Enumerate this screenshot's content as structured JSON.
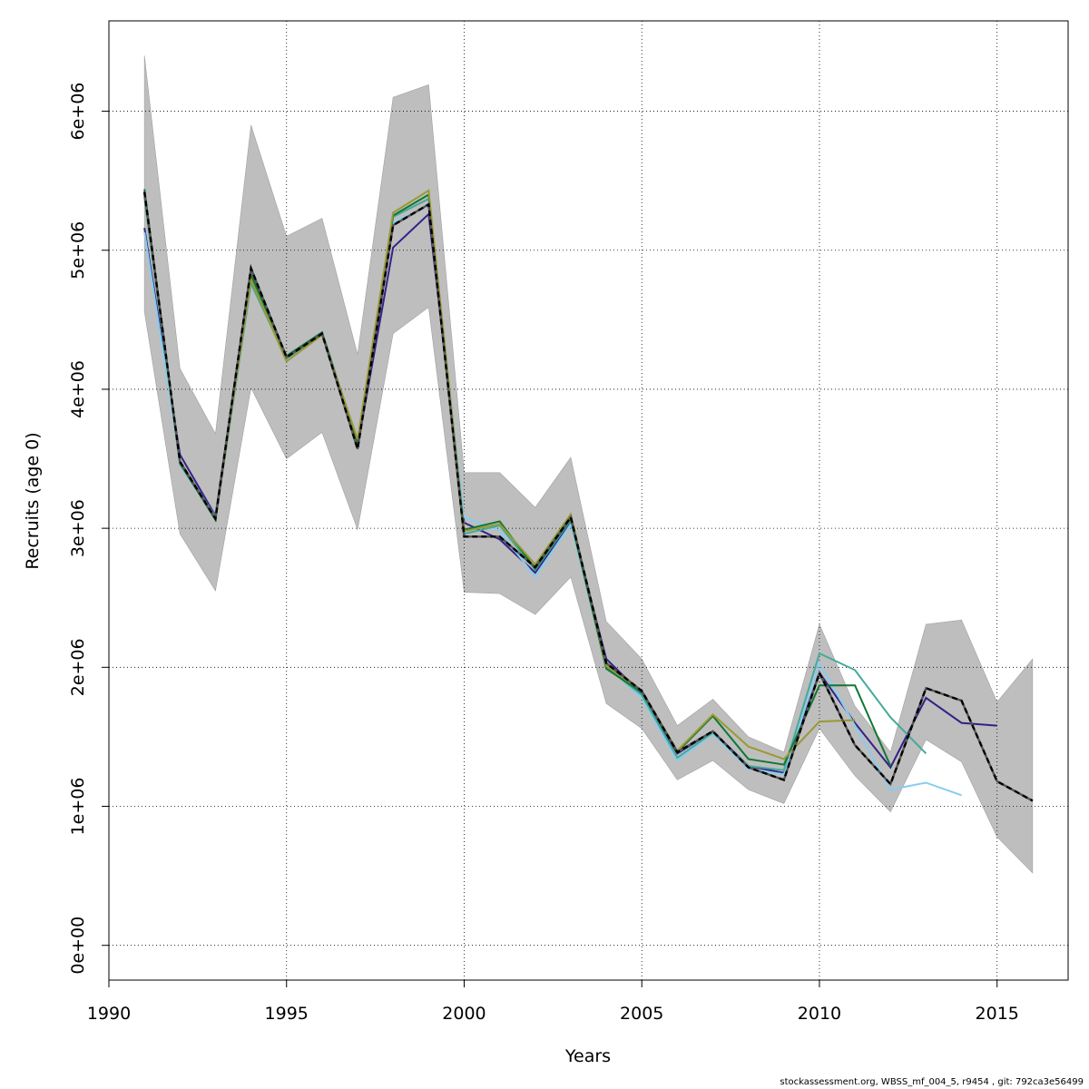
{
  "chart_data": {
    "type": "line",
    "xlabel": "Years",
    "ylabel": "Recruits (age 0)",
    "xlim": [
      1990,
      2017
    ],
    "ylim": [
      -250000,
      6650000
    ],
    "x_ticks": [
      1990,
      1995,
      2000,
      2005,
      2010,
      2015
    ],
    "x_tick_labels": [
      "1990",
      "1995",
      "2000",
      "2005",
      "2010",
      "2015"
    ],
    "y_ticks": [
      0,
      1000000,
      2000000,
      3000000,
      4000000,
      5000000,
      6000000
    ],
    "y_tick_labels": [
      "0e+00",
      "1e+06",
      "2e+06",
      "3e+06",
      "4e+06",
      "5e+06",
      "6e+06"
    ],
    "grid": true,
    "confidence_band": {
      "color": "#bebebe",
      "x": [
        1991,
        1992,
        1993,
        1994,
        1995,
        1996,
        1997,
        1998,
        1999,
        2000,
        2001,
        2002,
        2003,
        2004,
        2005,
        2006,
        2007,
        2008,
        2009,
        2010,
        2011,
        2012,
        2013,
        2014,
        2015,
        2016
      ],
      "upper": [
        6400000,
        4150000,
        3680000,
        5900000,
        5100000,
        5230000,
        4250000,
        6100000,
        6190000,
        3400000,
        3400000,
        3150000,
        3510000,
        2330000,
        2060000,
        1580000,
        1770000,
        1500000,
        1390000,
        2310000,
        1720000,
        1390000,
        2310000,
        2340000,
        1750000,
        2060000
      ],
      "lower": [
        4560000,
        2960000,
        2550000,
        4010000,
        3500000,
        3690000,
        2990000,
        4400000,
        4590000,
        2540000,
        2530000,
        2380000,
        2650000,
        1740000,
        1560000,
        1190000,
        1330000,
        1120000,
        1020000,
        1560000,
        1220000,
        960000,
        1480000,
        1320000,
        780000,
        520000
      ]
    },
    "series": [
      {
        "color": "#332288",
        "x": [
          1991,
          1992,
          1993,
          1994,
          1995,
          1996,
          1997,
          1998,
          1999,
          2000,
          2001,
          2002,
          2003,
          2004,
          2005,
          2006,
          2007,
          2008,
          2009,
          2010,
          2011,
          2012,
          2013,
          2014,
          2015
        ],
        "values": [
          5160000,
          3530000,
          3090000,
          4860000,
          4230000,
          4400000,
          3590000,
          5020000,
          5260000,
          3040000,
          2920000,
          2680000,
          3050000,
          2060000,
          1810000,
          1380000,
          1540000,
          1290000,
          1240000,
          1960000,
          1600000,
          1280000,
          1780000,
          1600000,
          1580000
        ]
      },
      {
        "color": "#88ccee",
        "x": [
          1991,
          1992,
          1993,
          1994,
          1995,
          1996,
          1997,
          1998,
          1999,
          2000,
          2001,
          2002,
          2003,
          2004,
          2005,
          2006,
          2007,
          2008,
          2009,
          2010,
          2011,
          2012,
          2013,
          2014
        ],
        "values": [
          5130000,
          3480000,
          3080000,
          4770000,
          4210000,
          4390000,
          3580000,
          5200000,
          5320000,
          3080000,
          2980000,
          2650000,
          3030000,
          2010000,
          1780000,
          1330000,
          1520000,
          1270000,
          1230000,
          2030000,
          1580000,
          1120000,
          1170000,
          1080000
        ]
      },
      {
        "color": "#44aa99",
        "x": [
          1991,
          1992,
          1993,
          1994,
          1995,
          1996,
          1997,
          1998,
          1999,
          2000,
          2001,
          2002,
          2003,
          2004,
          2005,
          2006,
          2007,
          2008,
          2009,
          2010,
          2011,
          2012,
          2013
        ],
        "values": [
          5380000,
          3460000,
          3070000,
          4760000,
          4220000,
          4400000,
          3610000,
          5240000,
          5370000,
          2960000,
          3020000,
          2700000,
          3060000,
          2000000,
          1800000,
          1350000,
          1530000,
          1290000,
          1260000,
          2100000,
          1980000,
          1640000,
          1380000
        ]
      },
      {
        "color": "#117733",
        "x": [
          1991,
          1992,
          1993,
          1994,
          1995,
          1996,
          1997,
          1998,
          1999,
          2000,
          2001,
          2002,
          2003,
          2004,
          2005,
          2006,
          2007,
          2008,
          2009,
          2010,
          2011,
          2012
        ],
        "values": [
          5440000,
          3470000,
          3060000,
          4820000,
          4240000,
          4410000,
          3620000,
          5250000,
          5400000,
          2990000,
          3050000,
          2710000,
          3070000,
          1990000,
          1820000,
          1390000,
          1650000,
          1340000,
          1300000,
          1870000,
          1870000,
          1290000
        ]
      },
      {
        "color": "#999933",
        "x": [
          1991,
          1992,
          1993,
          1994,
          1995,
          1996,
          1997,
          1998,
          1999,
          2000,
          2001,
          2002,
          2003,
          2004,
          2005,
          2006,
          2007,
          2008,
          2009,
          2010,
          2011
        ],
        "values": [
          5410000,
          3480000,
          3070000,
          4790000,
          4200000,
          4390000,
          3640000,
          5270000,
          5430000,
          2980000,
          3030000,
          2740000,
          3100000,
          2010000,
          1830000,
          1400000,
          1660000,
          1430000,
          1340000,
          1610000,
          1620000
        ]
      },
      {
        "color": "#000000",
        "style": "dashed-reference",
        "x": [
          1991,
          1992,
          1993,
          1994,
          1995,
          1996,
          1997,
          1998,
          1999,
          2000,
          2001,
          2002,
          2003,
          2004,
          2005,
          2006,
          2007,
          2008,
          2009,
          2010,
          2011,
          2012,
          2013,
          2014,
          2015,
          2016
        ],
        "values": [
          5420000,
          3480000,
          3070000,
          4870000,
          4230000,
          4400000,
          3570000,
          5180000,
          5330000,
          2940000,
          2940000,
          2720000,
          3080000,
          2030000,
          1830000,
          1390000,
          1540000,
          1280000,
          1190000,
          1960000,
          1440000,
          1160000,
          1850000,
          1760000,
          1180000,
          1040000
        ]
      }
    ]
  },
  "footer_text": "stockassessment.org, WBSS_mf_004_5, r9454 , git: 792ca3e56499"
}
